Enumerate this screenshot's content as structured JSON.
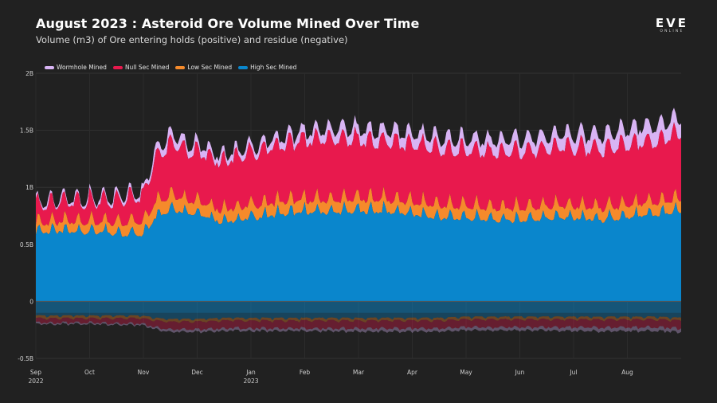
{
  "header": {
    "title": "August 2023 : Asteroid Ore Volume Mined Over Time",
    "subtitle": "Volume (m3) of Ore entering holds (positive) and residue (negative)"
  },
  "logo": {
    "main": "EVE",
    "sub": "ONLINE"
  },
  "chart_data": {
    "type": "area",
    "title": "August 2023 : Asteroid Ore Volume Mined Over Time",
    "subtitle": "Volume (m3) of Ore entering holds (positive) and residue (negative)",
    "stacked": true,
    "xlabel": "",
    "ylabel": "",
    "ylim": [
      -0.5,
      2.0
    ],
    "y_ticks": [
      {
        "value": 2.0,
        "label": "2B"
      },
      {
        "value": 1.5,
        "label": "1.5B"
      },
      {
        "value": 1.0,
        "label": "1B"
      },
      {
        "value": 0.5,
        "label": "0.5B"
      },
      {
        "value": 0.0,
        "label": "0"
      },
      {
        "value": -0.5,
        "label": "-0.5B"
      }
    ],
    "x_ticks": [
      {
        "month": 0,
        "label": "Sep",
        "year": "2022"
      },
      {
        "month": 1,
        "label": "Oct",
        "year": ""
      },
      {
        "month": 2,
        "label": "Nov",
        "year": ""
      },
      {
        "month": 3,
        "label": "Dec",
        "year": ""
      },
      {
        "month": 4,
        "label": "Jan",
        "year": "2023"
      },
      {
        "month": 5,
        "label": "Feb",
        "year": ""
      },
      {
        "month": 6,
        "label": "Mar",
        "year": ""
      },
      {
        "month": 7,
        "label": "Apr",
        "year": ""
      },
      {
        "month": 8,
        "label": "May",
        "year": ""
      },
      {
        "month": 9,
        "label": "Jun",
        "year": ""
      },
      {
        "month": 10,
        "label": "Jul",
        "year": ""
      },
      {
        "month": 11,
        "label": "Aug",
        "year": ""
      }
    ],
    "x_range_months": [
      0,
      12
    ],
    "x_unit": "months since Sep 2022",
    "value_unit": "billion m3",
    "legend": {
      "placement": "top-left"
    },
    "series_order_bottom_to_top": [
      "High Sec Mined",
      "Low Sec Mined",
      "Null Sec Mined",
      "Wormhole Mined"
    ],
    "series": [
      {
        "name": "Wormhole Mined",
        "color": "#d8b4f4",
        "x": [
          0,
          0.5,
          1,
          1.5,
          2,
          2.2,
          2.5,
          3,
          3.5,
          4,
          4.5,
          5,
          5.5,
          6,
          6.5,
          7,
          7.5,
          8,
          8.5,
          9,
          9.5,
          10,
          10.5,
          11,
          11.5,
          12
        ],
        "values": [
          0.02,
          0.02,
          0.02,
          0.03,
          0.03,
          0.06,
          0.07,
          0.06,
          0.05,
          0.05,
          0.06,
          0.07,
          0.08,
          0.09,
          0.09,
          0.09,
          0.09,
          0.09,
          0.1,
          0.1,
          0.1,
          0.11,
          0.12,
          0.13,
          0.13,
          0.13
        ],
        "residue": [
          -0.01,
          -0.01,
          -0.01,
          -0.01,
          -0.01,
          -0.015,
          -0.02,
          -0.02,
          -0.02,
          -0.02,
          -0.02,
          -0.02,
          -0.02,
          -0.025,
          -0.025,
          -0.025,
          -0.025,
          -0.025,
          -0.025,
          -0.025,
          -0.025,
          -0.03,
          -0.03,
          -0.03,
          -0.03,
          -0.03
        ]
      },
      {
        "name": "Null Sec Mined",
        "color": "#e8194d",
        "x": [
          0,
          0.5,
          1,
          1.5,
          2,
          2.2,
          2.5,
          3,
          3.5,
          4,
          4.5,
          5,
          5.5,
          6,
          6.5,
          7,
          7.5,
          8,
          8.5,
          9,
          9.5,
          10,
          10.5,
          11,
          11.5,
          12
        ],
        "values": [
          0.13,
          0.14,
          0.15,
          0.17,
          0.2,
          0.35,
          0.42,
          0.4,
          0.4,
          0.42,
          0.46,
          0.5,
          0.5,
          0.48,
          0.48,
          0.48,
          0.46,
          0.46,
          0.46,
          0.46,
          0.48,
          0.48,
          0.48,
          0.5,
          0.5,
          0.55
        ],
        "residue": [
          -0.03,
          -0.03,
          -0.03,
          -0.035,
          -0.04,
          -0.05,
          -0.06,
          -0.06,
          -0.06,
          -0.06,
          -0.06,
          -0.06,
          -0.06,
          -0.06,
          -0.06,
          -0.06,
          -0.06,
          -0.06,
          -0.06,
          -0.06,
          -0.06,
          -0.06,
          -0.06,
          -0.06,
          -0.06,
          -0.06
        ]
      },
      {
        "name": "Low Sec Mined",
        "color": "#f58a2b",
        "x": [
          0,
          0.5,
          1,
          1.5,
          2,
          2.2,
          2.5,
          3,
          3.5,
          4,
          4.5,
          5,
          5.5,
          6,
          6.5,
          7,
          7.5,
          8,
          8.5,
          9,
          9.5,
          10,
          10.5,
          11,
          11.5,
          12
        ],
        "values": [
          0.07,
          0.08,
          0.08,
          0.09,
          0.1,
          0.12,
          0.12,
          0.1,
          0.1,
          0.1,
          0.1,
          0.1,
          0.1,
          0.1,
          0.1,
          0.1,
          0.1,
          0.1,
          0.1,
          0.1,
          0.1,
          0.1,
          0.1,
          0.1,
          0.1,
          0.1
        ],
        "residue": [
          -0.02,
          -0.02,
          -0.02,
          -0.02,
          -0.02,
          -0.02,
          -0.02,
          -0.02,
          -0.02,
          -0.02,
          -0.02,
          -0.02,
          -0.02,
          -0.02,
          -0.02,
          -0.02,
          -0.02,
          -0.02,
          -0.02,
          -0.02,
          -0.02,
          -0.02,
          -0.02,
          -0.02,
          -0.02,
          -0.02
        ]
      },
      {
        "name": "High Sec Mined",
        "color": "#0a86cc",
        "x": [
          0,
          0.5,
          1,
          1.5,
          2,
          2.2,
          2.5,
          3,
          3.5,
          4,
          4.5,
          5,
          5.5,
          6,
          6.5,
          7,
          7.5,
          8,
          8.5,
          9,
          9.5,
          10,
          10.5,
          11,
          11.5,
          12
        ],
        "values": [
          0.6,
          0.6,
          0.6,
          0.58,
          0.58,
          0.72,
          0.8,
          0.75,
          0.68,
          0.72,
          0.75,
          0.77,
          0.77,
          0.78,
          0.78,
          0.75,
          0.72,
          0.72,
          0.7,
          0.7,
          0.72,
          0.72,
          0.7,
          0.72,
          0.75,
          0.78
        ],
        "residue": [
          -0.12,
          -0.12,
          -0.12,
          -0.12,
          -0.12,
          -0.14,
          -0.15,
          -0.15,
          -0.14,
          -0.14,
          -0.14,
          -0.14,
          -0.14,
          -0.14,
          -0.14,
          -0.14,
          -0.14,
          -0.13,
          -0.13,
          -0.13,
          -0.13,
          -0.13,
          -0.13,
          -0.13,
          -0.13,
          -0.14
        ]
      }
    ]
  }
}
